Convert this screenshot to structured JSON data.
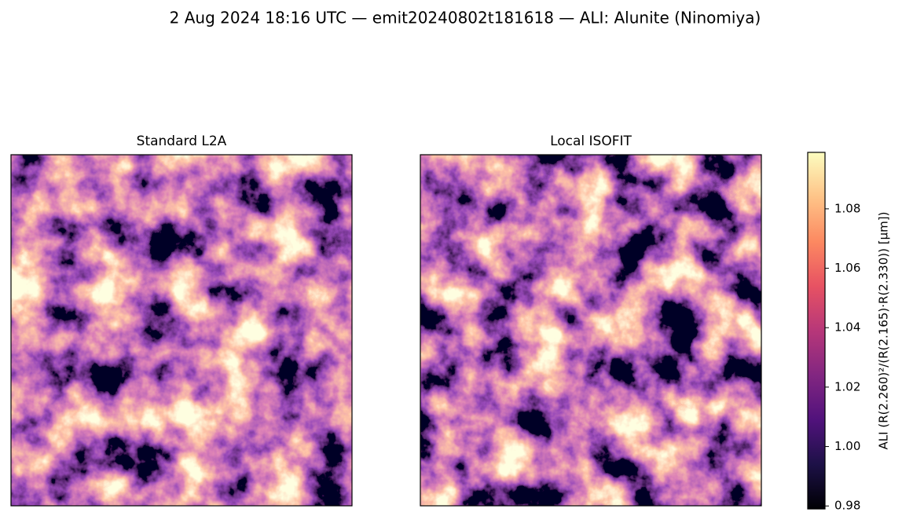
{
  "chart_data": {
    "type": "heatmap",
    "title": "2 Aug 2024 18:16 UTC — emit20240802t181618 — ALI: Alunite (Ninomiya)",
    "panels": [
      {
        "title": "Standard L2A"
      },
      {
        "title": "Local ISOFIT"
      }
    ],
    "colormap": "magma",
    "colorbar": {
      "label": "ALI  (R(2.260)²/(R(2.165)·R(2.330))  [µm])",
      "lim": [
        0.979,
        1.099
      ],
      "ticks": [
        0.98,
        {
          "value": 1.0,
          "label": "1.00"
        },
        1.02,
        1.04,
        1.06,
        1.08
      ]
    }
  }
}
